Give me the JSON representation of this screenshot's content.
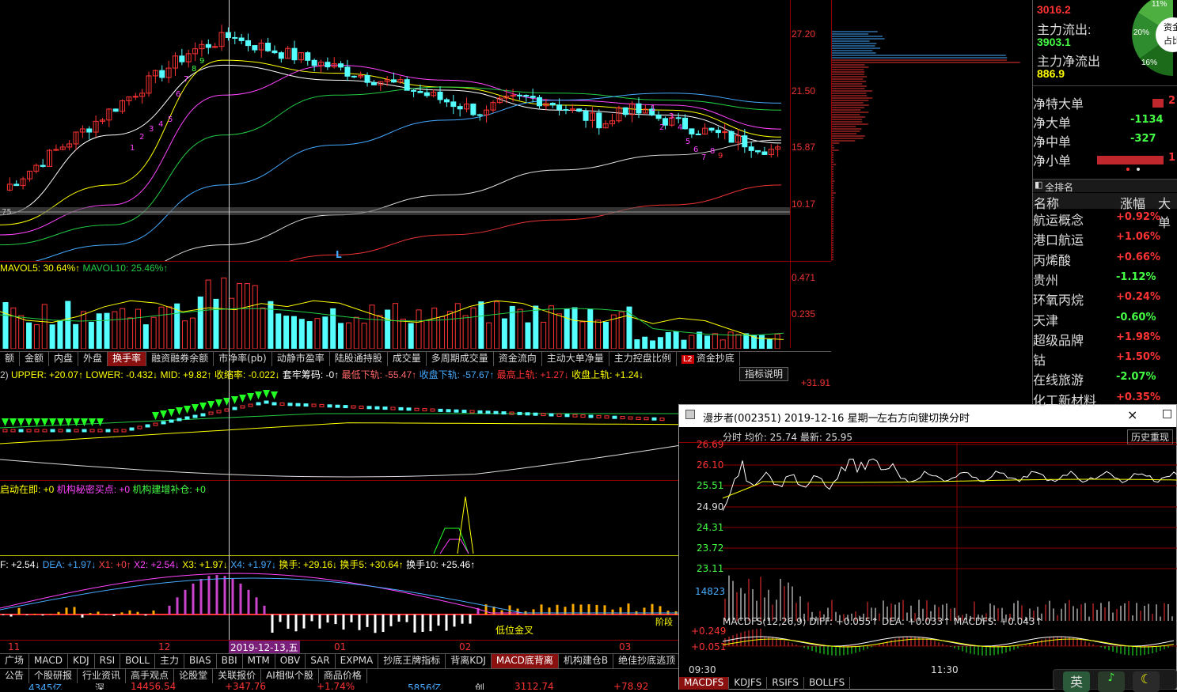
{
  "main_chart": {
    "price_axis": [
      "27.20",
      "21.50",
      "15.87",
      "10.17"
    ],
    "left_edge_label": "75",
    "marker_L": "L",
    "td_up_nums": [
      "1",
      "2",
      "3",
      "4",
      "5",
      "6",
      "7",
      "8",
      "9"
    ],
    "td_down_nums": [
      "1",
      "2",
      "3",
      "4",
      "5",
      "6",
      "7",
      "8",
      "9"
    ]
  },
  "volume": {
    "legend": {
      "mavol5": "MAVOL5: 30.64%↑",
      "mavol10": "MAVOL10: 25.46%↑"
    },
    "axis": [
      "0.471",
      "0.235"
    ]
  },
  "tabs_row1": [
    "额",
    "金额",
    "内盘",
    "外盘",
    "换手率",
    "融资融券余额",
    "市净率(pb)",
    "动静市盈率",
    "陆股通持股",
    "成交量",
    "多周期成交量",
    "资金流向",
    "主动大单净量",
    "主力控盘比例",
    "资金抄底"
  ],
  "tabs_row1_active": "换手率",
  "tabs_row1_badge": "L2",
  "indicator_explain": "指标说明",
  "boll_line": {
    "prefix": "2)",
    "upper": "UPPER: +20.07↑",
    "lower": "LOWER: -0.432↓",
    "mid": "MID: +9.82↑",
    "shrink": "收缩率: -0.022↓",
    "chip": "套牢筹码: -0↑",
    "lowest_lower": "最低下轨: -55.47↑",
    "close_lower": "收盘下轨: -57.67↑",
    "highest_upper": "最高上轨: +1.27↓",
    "close_upper": "收盘上轨: +1.24↓",
    "axis_top": "+31.91"
  },
  "signal_line": {
    "a": "启动在即: +0",
    "b": "机构秘密买点: +0",
    "c": "机构建增补仓: +0"
  },
  "macd_line": {
    "dif": "F: +2.54↓",
    "dea": "DEA: +1.97↓",
    "x1": "X1: +0↑",
    "x2": "X2: +2.54↓",
    "x3": "X3: +1.97↓",
    "x4": "X4: +1.97↓",
    "hs": "换手: +29.16↓",
    "hs5": "换手5: +30.64↑",
    "hs10": "换手10: +25.46↑"
  },
  "macd_annot": [
    "低位金叉",
    "阶段"
  ],
  "date_axis": [
    "11",
    "12",
    "2019-12-13,五",
    "01",
    "02",
    "03"
  ],
  "tabs_row2": [
    "广场",
    "MACD",
    "KDJ",
    "RSI",
    "BOLL",
    "主力",
    "BIAS",
    "BBI",
    "MTM",
    "OBV",
    "SAR",
    "EXPMA",
    "抄底王牌指标",
    "背离KDJ",
    "MACD底背离",
    "机构建仓B",
    "绝佳抄底逃顶"
  ],
  "tabs_row2_active": "MACD底背离",
  "tabs_row3": [
    "公告",
    "个股研报",
    "行业资讯",
    "高手观点",
    "论股堂",
    "关联报价",
    "AI相似个股",
    "商品价格"
  ],
  "ticker": [
    "4345亿",
    "深",
    "14456.54",
    "+347.76",
    "+1.74%",
    "5856亿",
    "创",
    "3112.74",
    "+78.92"
  ],
  "fund_flow": {
    "inflow_value": "3016.2",
    "outflow_label": "主力流出:",
    "outflow_value": "3903.1",
    "net_label": "主力净流出",
    "net_value": "886.9",
    "pie_labels": [
      "11%",
      "20%",
      "16%",
      "资金",
      "占比"
    ]
  },
  "order_net": [
    {
      "label": "净特大单",
      "value": "2",
      "color": "#c0272d"
    },
    {
      "label": "净大单",
      "value": "-1134",
      "color": "#1fb81f"
    },
    {
      "label": "净中单",
      "value": "-327",
      "color": "#1fb81f"
    },
    {
      "label": "净小单",
      "value": "1",
      "color": "#c0272d"
    }
  ],
  "rank": {
    "title": "全排名",
    "col_name": "名称",
    "col_pct": "涨幅",
    "col_big": "大单",
    "rows": [
      {
        "name": "航运概念",
        "pct": "+0.92%",
        "up": true
      },
      {
        "name": "港口航运",
        "pct": "+1.06%",
        "up": true
      },
      {
        "name": "丙烯酸",
        "pct": "+0.66%",
        "up": true
      },
      {
        "name": "贵州",
        "pct": "-1.12%",
        "up": false
      },
      {
        "name": "环氧丙烷",
        "pct": "+0.24%",
        "up": true
      },
      {
        "name": "天津",
        "pct": "-0.60%",
        "up": false
      },
      {
        "name": "超级品牌",
        "pct": "+1.98%",
        "up": true
      },
      {
        "name": "钴",
        "pct": "+1.50%",
        "up": true
      },
      {
        "name": "在线旅游",
        "pct": "-2.07%",
        "up": false
      },
      {
        "name": "化工新材料",
        "pct": "+0.35%",
        "up": true
      }
    ]
  },
  "popup": {
    "title": "漫步者(002351) 2019-12-16 星期一",
    "hint": "左右方向键切换分时",
    "close": "×",
    "maximize": "□",
    "history_btn": "历史重现",
    "header": "分时 均价: 25.74 最新: 25.95",
    "price_axis": [
      "26.69",
      "26.10",
      "25.51",
      "24.90",
      "24.31",
      "23.72",
      "23.11"
    ],
    "vol_label": "14823",
    "macd_header": "MACDFS(12,26,9) DIFF: +0.055↑ DEA: +0.033↑ MACDFS: +0.043↑",
    "macd_axis": [
      "+0.249",
      "+0.051"
    ],
    "time_axis": [
      "09:30",
      "11:30"
    ],
    "bottom_tabs": [
      "MACDFS",
      "KDJFS",
      "RSIFS",
      "BOLLFS"
    ],
    "bottom_active": "MACDFS"
  },
  "tray": [
    "英",
    "♪",
    "☾"
  ]
}
